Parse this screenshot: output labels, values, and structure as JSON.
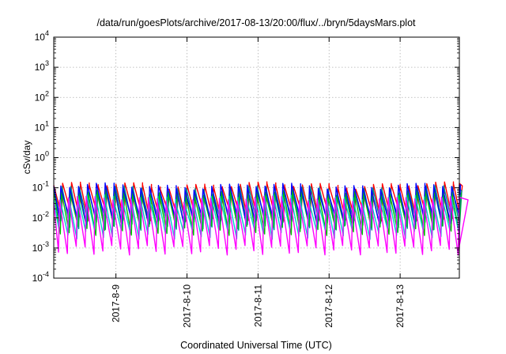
{
  "chart_data": {
    "type": "line",
    "title": "/data/run/goesPlots/archive/2017-08-13/20:00/flux/../bryn/5daysMars.plot",
    "xlabel": "Coordinated Universal Time (UTC)",
    "ylabel": "cSv/day",
    "yscale": "log",
    "ylim": [
      0.0001,
      10000
    ],
    "y_ticks": [
      {
        "value": 0.0001,
        "base": "10",
        "exp": "-4"
      },
      {
        "value": 0.001,
        "base": "10",
        "exp": "-3"
      },
      {
        "value": 0.01,
        "base": "10",
        "exp": "-2"
      },
      {
        "value": 0.1,
        "base": "10",
        "exp": "-1"
      },
      {
        "value": 1,
        "base": "10",
        "exp": "0"
      },
      {
        "value": 10,
        "base": "10",
        "exp": "1"
      },
      {
        "value": 100,
        "base": "10",
        "exp": "2"
      },
      {
        "value": 1000,
        "base": "10",
        "exp": "3"
      },
      {
        "value": 10000,
        "base": "10",
        "exp": "4"
      }
    ],
    "xlim": [
      "2017-08-08T03:00",
      "2017-08-13T20:00"
    ],
    "x_ticks": [
      "2017-8-9",
      "2017-8-10",
      "2017-8-11",
      "2017-8-12",
      "2017-8-13"
    ],
    "grid": true,
    "legend": "none",
    "sawtooth_period_hours": 3,
    "series": [
      {
        "color": "#ff0000",
        "peak": 0.12,
        "trough": 0.012
      },
      {
        "color": "#008b8b",
        "peak": 0.09,
        "trough": 0.006
      },
      {
        "color": "#00c000",
        "peak": 0.07,
        "trough": 0.004
      },
      {
        "color": "#0000ff",
        "peak": 0.11,
        "trough": 0.009
      },
      {
        "color": "#00cccc",
        "peak": 0.045,
        "trough": 0.003
      },
      {
        "color": "#ff00ff",
        "peak": 0.04,
        "trough": 0.0009
      }
    ]
  }
}
